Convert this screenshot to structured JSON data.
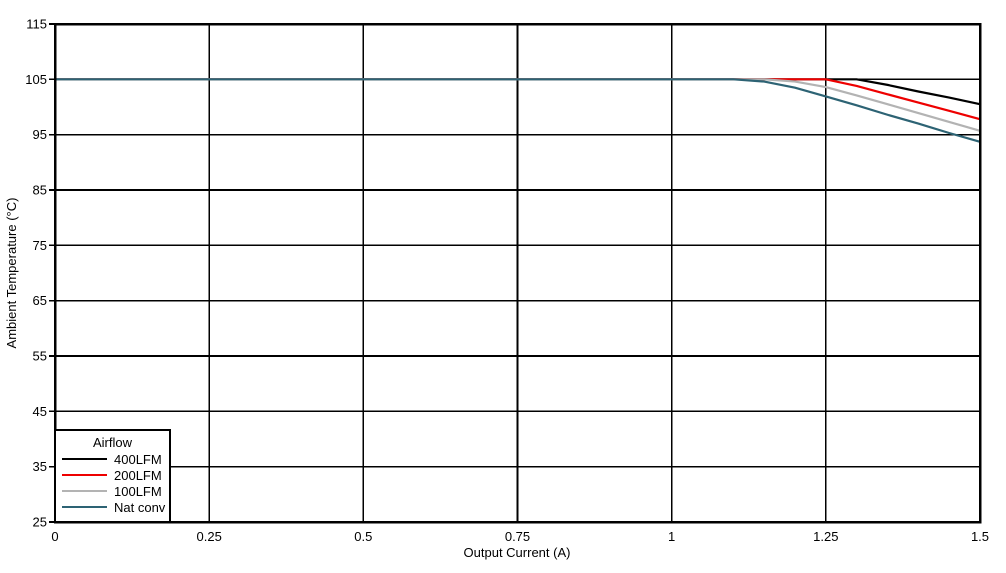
{
  "chart_data": {
    "type": "line",
    "title": "",
    "xlabel": "Output Current (A)",
    "ylabel": "Ambient Temperature (°C)",
    "xlim": [
      0,
      1.5
    ],
    "ylim": [
      25,
      115
    ],
    "x_ticks": [
      0,
      0.25,
      0.5,
      0.75,
      1,
      1.25,
      1.5
    ],
    "x_tick_labels": [
      "0",
      "0.25",
      "0.5",
      "0.75",
      "1",
      "1.25",
      "1.5"
    ],
    "y_ticks": [
      25,
      35,
      45,
      55,
      65,
      75,
      85,
      95,
      105,
      115
    ],
    "y_tick_labels": [
      "25",
      "35",
      "45",
      "55",
      "65",
      "75",
      "85",
      "95",
      "105",
      "115"
    ],
    "grid": true,
    "legend_title": "Airflow",
    "legend_position": "lower-left",
    "background_color": "#ffffff",
    "gridline_color": "#000000",
    "series": [
      {
        "name": "400LFM",
        "color": "#000000",
        "points": [
          [
            0,
            105
          ],
          [
            1.3,
            105
          ],
          [
            1.35,
            104
          ],
          [
            1.4,
            102.8
          ],
          [
            1.45,
            101.7
          ],
          [
            1.5,
            100.5
          ]
        ]
      },
      {
        "name": "200LFM",
        "color": "#ee0000",
        "points": [
          [
            0,
            105
          ],
          [
            1.25,
            105
          ],
          [
            1.3,
            103.8
          ],
          [
            1.35,
            102.3
          ],
          [
            1.4,
            100.8
          ],
          [
            1.45,
            99.3
          ],
          [
            1.5,
            97.8
          ]
        ]
      },
      {
        "name": "100LFM",
        "color": "#b3b3b3",
        "points": [
          [
            0,
            105
          ],
          [
            1.15,
            105
          ],
          [
            1.2,
            104.6
          ],
          [
            1.25,
            103.6
          ],
          [
            1.3,
            102.1
          ],
          [
            1.35,
            100.5
          ],
          [
            1.4,
            98.9
          ],
          [
            1.45,
            97.3
          ],
          [
            1.5,
            95.7
          ]
        ]
      },
      {
        "name": "Nat conv",
        "color": "#2d6374",
        "points": [
          [
            0,
            105
          ],
          [
            1.1,
            105
          ],
          [
            1.15,
            104.6
          ],
          [
            1.2,
            103.5
          ],
          [
            1.25,
            101.9
          ],
          [
            1.3,
            100.3
          ],
          [
            1.35,
            98.6
          ],
          [
            1.4,
            97
          ],
          [
            1.45,
            95.3
          ],
          [
            1.5,
            93.7
          ]
        ]
      }
    ]
  }
}
